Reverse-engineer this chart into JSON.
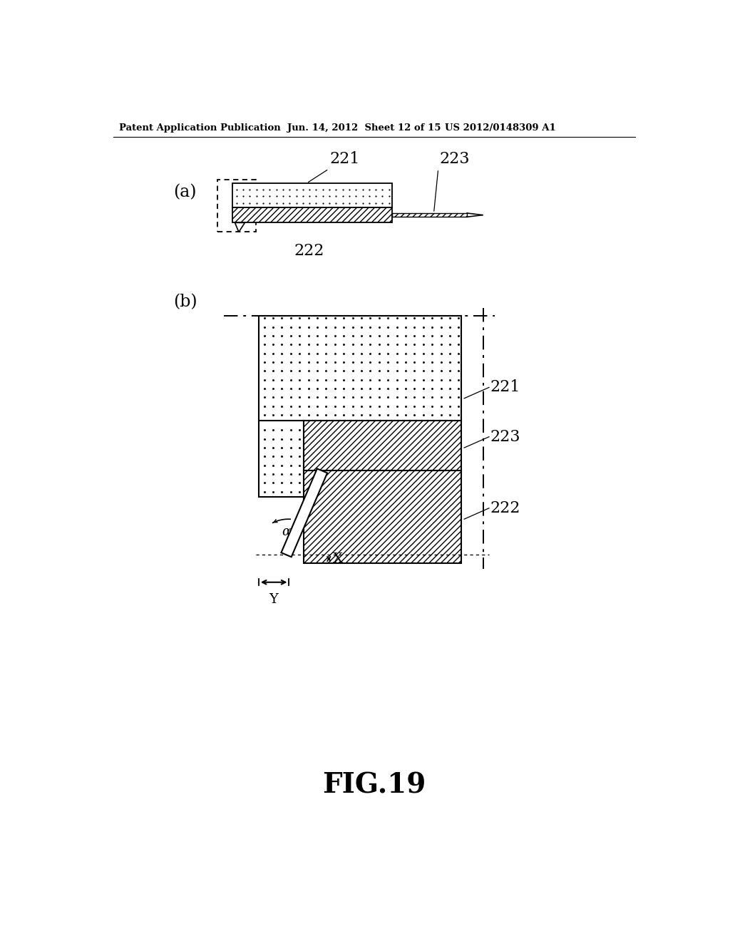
{
  "bg_color": "#ffffff",
  "header_left": "Patent Application Publication",
  "header_mid": "Jun. 14, 2012  Sheet 12 of 15",
  "header_right": "US 2012/0148309 A1",
  "fig_label": "FIG.19",
  "label_a": "(a)",
  "label_b": "(b)",
  "label_221": "221",
  "label_222": "222",
  "label_223": "223",
  "label_alpha": "α",
  "label_X": "X",
  "label_Y": "Y"
}
